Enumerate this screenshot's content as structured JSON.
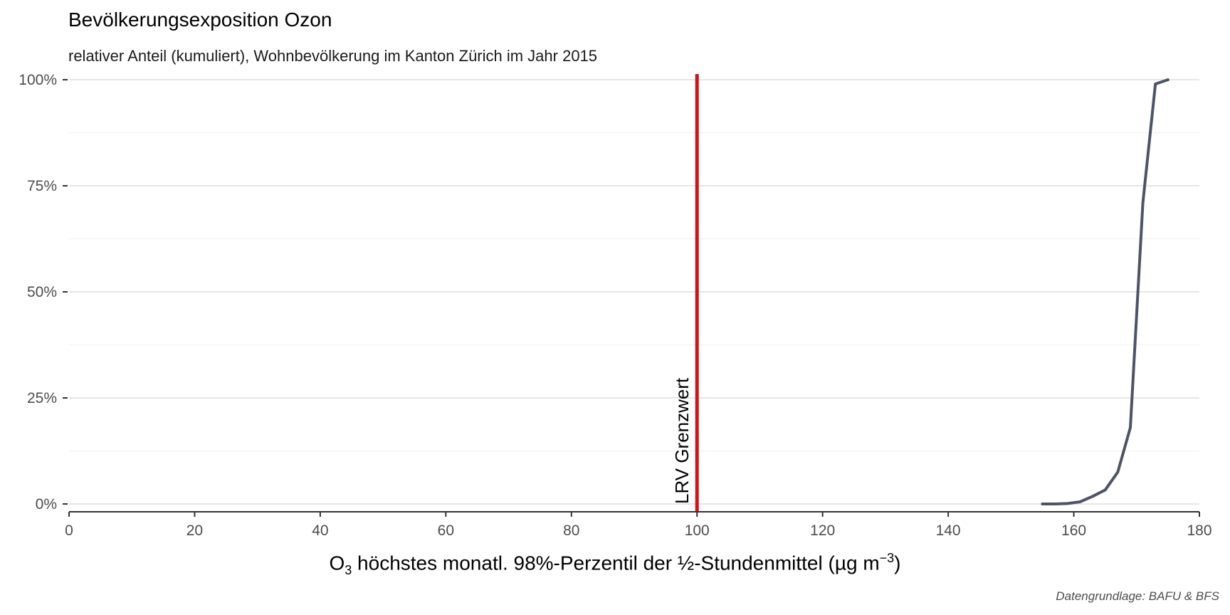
{
  "chart_data": {
    "type": "line",
    "title": "Bevölkerungsexposition Ozon",
    "subtitle": "relativer Anteil (kumuliert), Wohnbevölkerung im Kanton Zürich im Jahr 2015",
    "xlabel": {
      "pre": "O",
      "sub": "3",
      "mid": " höchstes monatl. 98%-Perzentil der ½-Stundenmittel (µg m",
      "sup": "−3",
      "post": ")"
    },
    "ylabel": "",
    "caption": "Datengrundlage: BAFU & BFS",
    "xlim": [
      0,
      180
    ],
    "ylim": [
      0,
      100
    ],
    "x_ticks": [
      0,
      20,
      40,
      60,
      80,
      100,
      120,
      140,
      160,
      180
    ],
    "x_tick_labels": [
      "0",
      "20",
      "40",
      "60",
      "80",
      "100",
      "120",
      "140",
      "160",
      "180"
    ],
    "y_ticks": [
      0,
      25,
      50,
      75,
      100
    ],
    "y_tick_labels": [
      "0%",
      "25%",
      "50%",
      "75%",
      "100%"
    ],
    "grid": true,
    "reference_line": {
      "x": 100,
      "label": "LRV Grenzwert",
      "color": "#c8161d"
    },
    "series": [
      {
        "color": "#4d5466",
        "x": [
          155,
          157,
          159,
          161,
          163,
          165,
          167,
          169,
          171,
          173,
          175
        ],
        "y": [
          0,
          0,
          0.1,
          0.5,
          1.8,
          3.3,
          7.5,
          18,
          71,
          99,
          100
        ]
      }
    ]
  }
}
